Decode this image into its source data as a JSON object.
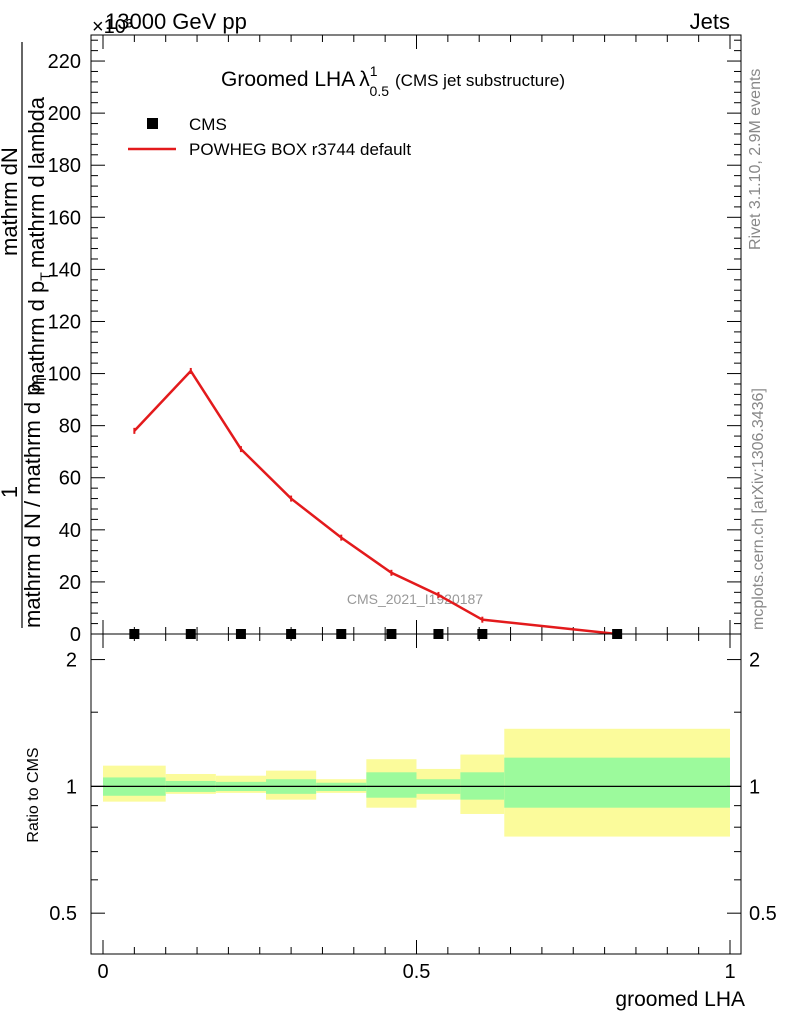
{
  "header": {
    "energy": "13000 GeV pp",
    "category": "Jets",
    "exponent": "×10³"
  },
  "side": {
    "rivet": "Rivet 3.1.10,  2.9M events",
    "mcplots": "mcplots.cern.ch [arXiv:1306.3436]"
  },
  "plot": {
    "title": "Groomed LHA",
    "lambda": "λ",
    "lambda_sup": "1",
    "lambda_sub": "0.5",
    "title_note": "(CMS jet substructure)",
    "watermark": "CMS_2021_I1920187"
  },
  "axes": {
    "y_main_label_top": "mathrm dN",
    "y_main_label_num": "1",
    "y_main_label_den": "mathrm d N / mathrm d p",
    "y_main_label_den_sub": "T",
    "y_main_label_right": "mathrm d p",
    "y_main_label_right_sub": "T",
    "y_main_label_right_end": "mathrm d lambda",
    "y_ratio_label": "Ratio to CMS",
    "x_label": "groomed LHA"
  },
  "legend": [
    {
      "name": "CMS",
      "type": "marker",
      "color": "#000000"
    },
    {
      "name": "POWHEG BOX r3744 default",
      "type": "line",
      "color": "#e31a1c"
    }
  ],
  "chart_data": [
    {
      "type": "line",
      "title": "Groomed LHA λ^1_0.5 (CMS jet substructure)",
      "xlabel": "groomed LHA",
      "ylabel": "1/(mathrm d N / mathrm d p_T) mathrm dN/(mathrm d p_T mathrm d lambda)",
      "xlim": [
        0,
        1
      ],
      "ylim": [
        0,
        230000
      ],
      "y_tick_labels": [
        "0",
        "20",
        "40",
        "60",
        "80",
        "100",
        "120",
        "140",
        "160",
        "180",
        "200",
        "220"
      ],
      "y_multiplier": "10^3",
      "bin_edges": [
        0,
        0.1,
        0.2,
        0.26,
        0.34,
        0.42,
        0.5,
        0.56,
        0.64,
        1.0
      ],
      "series": [
        {
          "name": "CMS",
          "x": [
            0.05,
            0.14,
            0.22,
            0.3,
            0.38,
            0.46,
            0.535,
            0.605,
            0.82
          ],
          "values": [
            0,
            0,
            0,
            0,
            0,
            0,
            0,
            0,
            0
          ]
        },
        {
          "name": "POWHEG BOX r3744 default",
          "x": [
            0.05,
            0.14,
            0.22,
            0.3,
            0.38,
            0.46,
            0.535,
            0.605,
            0.82
          ],
          "values": [
            78000,
            101000,
            71000,
            52000,
            37000,
            23500,
            15000,
            5500,
            0
          ]
        }
      ]
    },
    {
      "type": "area",
      "ylabel": "Ratio to CMS",
      "xlabel": "groomed LHA",
      "xlim": [
        0,
        1
      ],
      "ylim": [
        0.4,
        2.3
      ],
      "y_log": true,
      "y_ticks": [
        0.5,
        1,
        2
      ],
      "x_ticks": [
        0,
        0.5,
        1
      ],
      "reference": 1,
      "bins": [
        {
          "lo": 0.0,
          "hi": 0.1,
          "inner": [
            0.95,
            1.05
          ],
          "outer": [
            0.92,
            1.12
          ]
        },
        {
          "lo": 0.1,
          "hi": 0.18,
          "inner": [
            0.97,
            1.03
          ],
          "outer": [
            0.96,
            1.07
          ]
        },
        {
          "lo": 0.18,
          "hi": 0.26,
          "inner": [
            0.975,
            1.025
          ],
          "outer": [
            0.965,
            1.06
          ]
        },
        {
          "lo": 0.26,
          "hi": 0.34,
          "inner": [
            0.96,
            1.04
          ],
          "outer": [
            0.93,
            1.09
          ]
        },
        {
          "lo": 0.34,
          "hi": 0.42,
          "inner": [
            0.975,
            1.02
          ],
          "outer": [
            0.965,
            1.04
          ]
        },
        {
          "lo": 0.42,
          "hi": 0.5,
          "inner": [
            0.94,
            1.08
          ],
          "outer": [
            0.89,
            1.16
          ]
        },
        {
          "lo": 0.5,
          "hi": 0.57,
          "inner": [
            0.96,
            1.04
          ],
          "outer": [
            0.93,
            1.1
          ]
        },
        {
          "lo": 0.57,
          "hi": 0.64,
          "inner": [
            0.93,
            1.08
          ],
          "outer": [
            0.86,
            1.19
          ]
        },
        {
          "lo": 0.64,
          "hi": 1.0,
          "inner": [
            0.89,
            1.17
          ],
          "outer": [
            0.76,
            1.37
          ]
        }
      ],
      "colors": {
        "inner": "#9cfa9c",
        "outer": "#fbfb9b"
      }
    }
  ]
}
